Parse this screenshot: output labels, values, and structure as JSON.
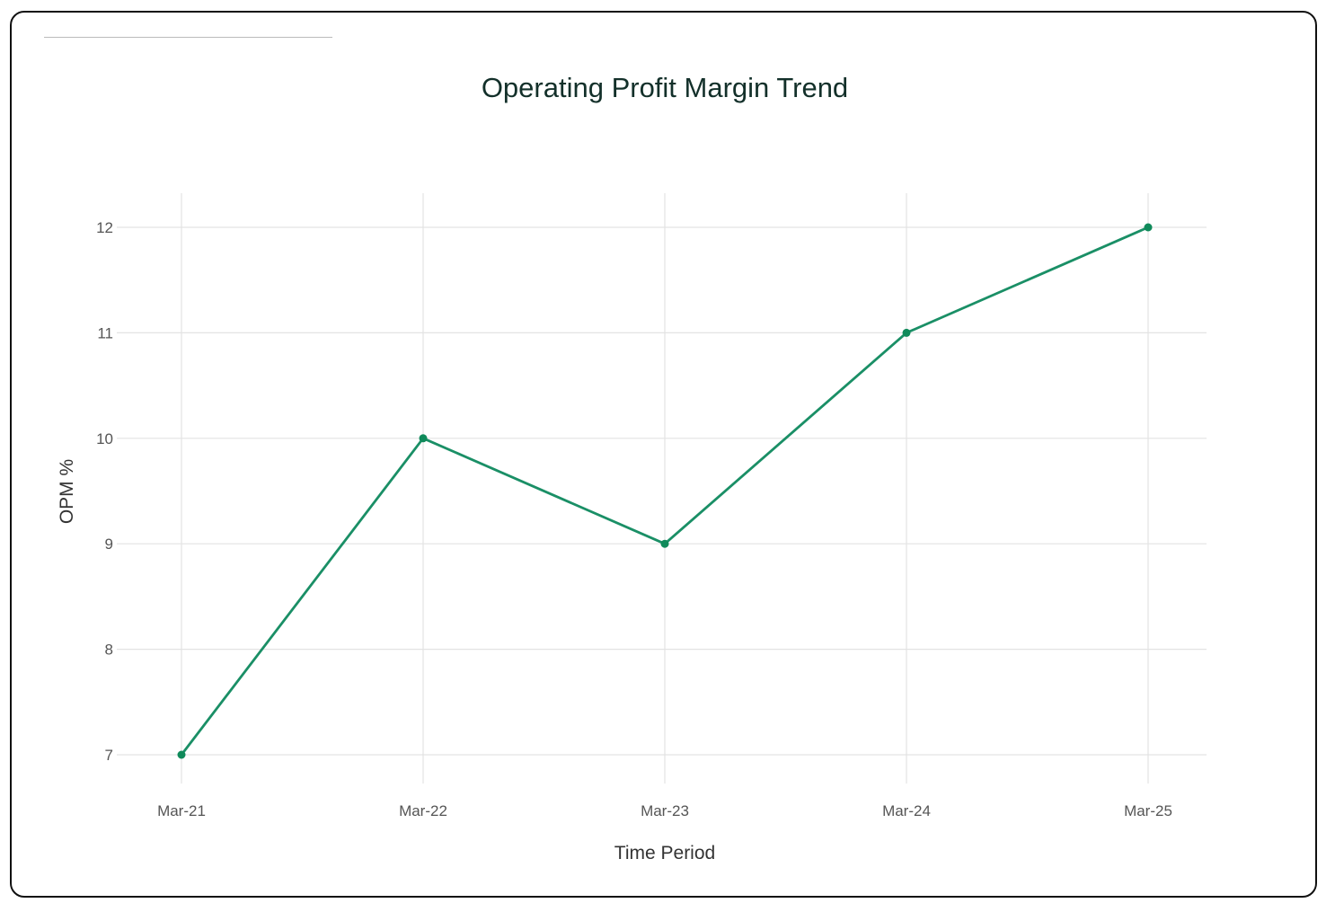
{
  "chart_data": {
    "type": "line",
    "title": "Operating Profit Margin Trend",
    "xlabel": "Time Period",
    "ylabel": "OPM %",
    "categories": [
      "Mar-21",
      "Mar-22",
      "Mar-23",
      "Mar-24",
      "Mar-25"
    ],
    "series": [
      {
        "name": "OPM %",
        "values": [
          7,
          10,
          9,
          11,
          12
        ]
      }
    ],
    "yticks": [
      7,
      8,
      9,
      10,
      11,
      12
    ],
    "ylim": [
      7,
      12
    ],
    "grid": true,
    "line_color": "#1a8f66",
    "marker_color": "#0f8a5a"
  }
}
